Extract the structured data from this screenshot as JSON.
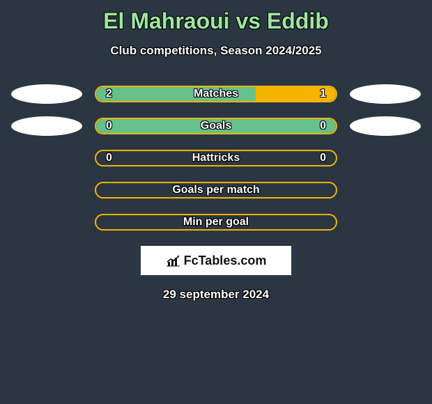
{
  "header": {
    "title": "El Mahraoui vs Eddib",
    "title_color": "#9fe6a0",
    "subtitle": "Club competitions, Season 2024/2025"
  },
  "colors": {
    "background": "#2b3643",
    "accent_a": "#65c18c",
    "accent_b": "#f4b400",
    "ellipse": "#ffffff",
    "text": "#ffffff"
  },
  "stats": [
    {
      "label": "Matches",
      "left_value": "2",
      "right_value": "1",
      "left_pct": 66.7,
      "right_pct": 33.3,
      "show_ellipses": true,
      "fills": "both"
    },
    {
      "label": "Goals",
      "left_value": "0",
      "right_value": "0",
      "left_pct": 50,
      "right_pct": 50,
      "show_ellipses": true,
      "fills": "green"
    },
    {
      "label": "Hattricks",
      "left_value": "0",
      "right_value": "0",
      "left_pct": 0,
      "right_pct": 0,
      "show_ellipses": false,
      "fills": "none"
    },
    {
      "label": "Goals per match",
      "left_value": "",
      "right_value": "",
      "left_pct": 0,
      "right_pct": 0,
      "show_ellipses": false,
      "fills": "none"
    },
    {
      "label": "Min per goal",
      "left_value": "",
      "right_value": "",
      "left_pct": 0,
      "right_pct": 0,
      "show_ellipses": false,
      "fills": "none"
    }
  ],
  "footer": {
    "brand": "FcTables.com",
    "date": "29 september 2024"
  }
}
